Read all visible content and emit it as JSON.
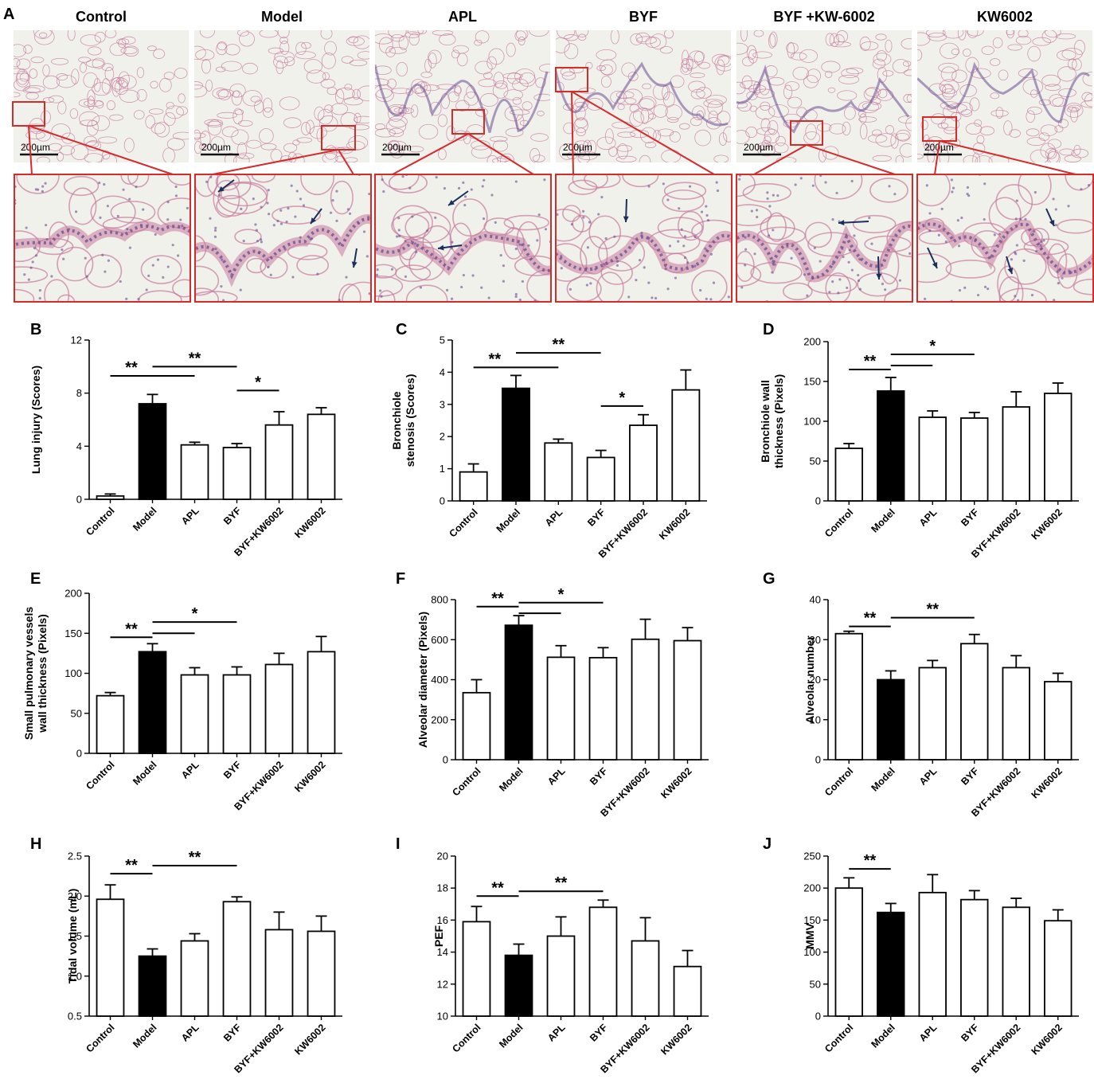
{
  "panel_a": {
    "letter": "A",
    "scale_bar_label": "200µm",
    "groups": [
      {
        "title": "Control"
      },
      {
        "title": "Model"
      },
      {
        "title": "APL"
      },
      {
        "title": "BYF"
      },
      {
        "title": "BYF +KW-6002"
      },
      {
        "title": "KW6002"
      }
    ],
    "colors": {
      "tissue_bg": "#f1f1ec",
      "tissue_pink": "#c77a9c",
      "tissue_purple": "#6a4c93",
      "highlight_box": "#d62b2b",
      "arrow": "#1b2f5c"
    }
  },
  "chart_data": [
    {
      "letter": "B",
      "type": "bar",
      "ylabel": "Lung injury (Scores)",
      "ylim": [
        0,
        12
      ],
      "yticks": [
        0,
        4,
        8,
        12
      ],
      "categories": [
        "Control",
        "Model",
        "APL",
        "BYF",
        "BYF+KW6002",
        "KW6002"
      ],
      "values": [
        0.25,
        7.2,
        4.1,
        3.9,
        5.6,
        6.4
      ],
      "errors": [
        0.15,
        0.7,
        0.2,
        0.3,
        1.0,
        0.5
      ],
      "filled": [
        false,
        true,
        false,
        false,
        false,
        false
      ],
      "significance": [
        {
          "label": "**",
          "from": 0,
          "to": 1,
          "level": 9.3
        },
        {
          "label": "**",
          "from": 1,
          "to": 3,
          "level": 10.0
        },
        {
          "label": "",
          "from": 1,
          "to": 2,
          "level": 9.3
        },
        {
          "label": "*",
          "from": 3,
          "to": 4,
          "level": 8.2
        }
      ]
    },
    {
      "letter": "C",
      "type": "bar",
      "ylabel": "Bronchiole stenosis (Scores)",
      "ylim": [
        0,
        5
      ],
      "yticks": [
        0,
        1,
        2,
        3,
        4,
        5
      ],
      "categories": [
        "Control",
        "Model",
        "APL",
        "BYF",
        "BYF+KW6002",
        "KW6002"
      ],
      "values": [
        0.9,
        3.5,
        1.8,
        1.35,
        2.35,
        3.45
      ],
      "errors": [
        0.25,
        0.4,
        0.12,
        0.22,
        0.33,
        0.62
      ],
      "filled": [
        false,
        true,
        false,
        false,
        false,
        false
      ],
      "significance": [
        {
          "label": "**",
          "from": 0,
          "to": 1,
          "level": 4.15
        },
        {
          "label": "**",
          "from": 1,
          "to": 3,
          "level": 4.6
        },
        {
          "label": "",
          "from": 1,
          "to": 2,
          "level": 4.15
        },
        {
          "label": "*",
          "from": 3,
          "to": 4,
          "level": 2.95
        }
      ]
    },
    {
      "letter": "D",
      "type": "bar",
      "ylabel": "Bronchiole wall thickness (Pixels)",
      "ylim": [
        0,
        200
      ],
      "yticks": [
        0,
        50,
        100,
        150,
        200
      ],
      "categories": [
        "Control",
        "Model",
        "APL",
        "BYF",
        "BYF+KW6002",
        "KW6002"
      ],
      "values": [
        66,
        138,
        105,
        104,
        118,
        135
      ],
      "errors": [
        6,
        17,
        8,
        7,
        19,
        13
      ],
      "filled": [
        false,
        true,
        false,
        false,
        false,
        false
      ],
      "significance": [
        {
          "label": "**",
          "from": 0,
          "to": 1,
          "level": 165
        },
        {
          "label": "*",
          "from": 1,
          "to": 3,
          "level": 184
        },
        {
          "label": "",
          "from": 1,
          "to": 2,
          "level": 170
        }
      ]
    },
    {
      "letter": "E",
      "type": "bar",
      "ylabel": "Small pulmonary vessels wall thickness (Pixels)",
      "ylim": [
        0,
        200
      ],
      "yticks": [
        0,
        50,
        100,
        150,
        200
      ],
      "categories": [
        "Control",
        "Model",
        "APL",
        "BYF",
        "BYF+KW6002",
        "KW6002"
      ],
      "values": [
        72,
        127,
        98,
        98,
        111,
        127
      ],
      "errors": [
        4,
        10,
        9,
        10,
        14,
        19
      ],
      "filled": [
        false,
        true,
        false,
        false,
        false,
        false
      ],
      "significance": [
        {
          "label": "**",
          "from": 0,
          "to": 1,
          "level": 145
        },
        {
          "label": "*",
          "from": 1,
          "to": 3,
          "level": 164
        },
        {
          "label": "",
          "from": 1,
          "to": 2,
          "level": 150
        }
      ]
    },
    {
      "letter": "F",
      "type": "bar",
      "ylabel": "Alveolar diameter (Pixels)",
      "ylim": [
        0,
        800
      ],
      "yticks": [
        0,
        200,
        400,
        600,
        800
      ],
      "categories": [
        "Control",
        "Model",
        "APL",
        "BYF",
        "BYF+KW6002",
        "KW6002"
      ],
      "values": [
        335,
        672,
        512,
        510,
        602,
        595
      ],
      "errors": [
        65,
        48,
        58,
        50,
        100,
        65
      ],
      "filled": [
        false,
        true,
        false,
        false,
        false,
        false
      ],
      "significance": [
        {
          "label": "**",
          "from": 0,
          "to": 1,
          "level": 765
        },
        {
          "label": "*",
          "from": 1,
          "to": 3,
          "level": 785
        },
        {
          "label": "",
          "from": 1,
          "to": 2,
          "level": 732
        }
      ]
    },
    {
      "letter": "G",
      "type": "bar",
      "ylabel": "Alveolar number",
      "ylim": [
        0,
        40
      ],
      "yticks": [
        0,
        10,
        20,
        30,
        40
      ],
      "categories": [
        "Control",
        "Model",
        "APL",
        "BYF",
        "BYF+KW6002",
        "KW6002"
      ],
      "values": [
        31.5,
        20,
        23,
        29,
        23,
        19.5
      ],
      "errors": [
        0.6,
        2.2,
        1.8,
        2.3,
        3.0,
        2.1
      ],
      "filled": [
        false,
        true,
        false,
        false,
        false,
        false
      ],
      "significance": [
        {
          "label": "**",
          "from": 0,
          "to": 1,
          "level": 33.3
        },
        {
          "label": "**",
          "from": 1,
          "to": 3,
          "level": 35.5
        }
      ]
    },
    {
      "letter": "H",
      "type": "bar",
      "ylabel": "Tidal volume (mL)",
      "ylim": [
        0.5,
        2.5
      ],
      "yticks": [
        0.5,
        1.0,
        1.5,
        2.0,
        2.5
      ],
      "tick_format": "fixed1",
      "categories": [
        "Control",
        "Model",
        "APL",
        "BYF",
        "BYF+KW6002",
        "KW6002"
      ],
      "values": [
        1.96,
        1.25,
        1.44,
        1.93,
        1.58,
        1.56
      ],
      "errors": [
        0.18,
        0.09,
        0.09,
        0.06,
        0.22,
        0.19
      ],
      "filled": [
        false,
        true,
        false,
        false,
        false,
        false
      ],
      "significance": [
        {
          "label": "**",
          "from": 0,
          "to": 1,
          "level": 2.28
        },
        {
          "label": "**",
          "from": 1,
          "to": 3,
          "level": 2.38
        }
      ]
    },
    {
      "letter": "I",
      "type": "bar",
      "ylabel": "PEF",
      "ylim": [
        10,
        20
      ],
      "yticks": [
        10,
        12,
        14,
        16,
        18,
        20
      ],
      "categories": [
        "Control",
        "Model",
        "APL",
        "BYF",
        "BYF+KW6002",
        "KW6002"
      ],
      "values": [
        15.9,
        13.8,
        15.0,
        16.8,
        14.7,
        13.1
      ],
      "errors": [
        0.95,
        0.7,
        1.2,
        0.45,
        1.45,
        1.0
      ],
      "filled": [
        false,
        true,
        false,
        false,
        false,
        false
      ],
      "significance": [
        {
          "label": "**",
          "from": 0,
          "to": 1,
          "level": 17.5
        },
        {
          "label": "**",
          "from": 1,
          "to": 3,
          "level": 17.8
        }
      ]
    },
    {
      "letter": "J",
      "type": "bar",
      "ylabel": "MMV",
      "ylim": [
        0,
        250
      ],
      "yticks": [
        0,
        50,
        100,
        150,
        200,
        250
      ],
      "categories": [
        "Control",
        "Model",
        "APL",
        "BYF",
        "BYF+KW6002",
        "KW6002"
      ],
      "values": [
        200,
        162,
        193,
        182,
        170,
        149
      ],
      "errors": [
        16,
        14,
        28,
        14,
        14,
        17
      ],
      "filled": [
        false,
        true,
        false,
        false,
        false,
        false
      ],
      "significance": [
        {
          "label": "**",
          "from": 0,
          "to": 1,
          "level": 230
        }
      ]
    }
  ]
}
